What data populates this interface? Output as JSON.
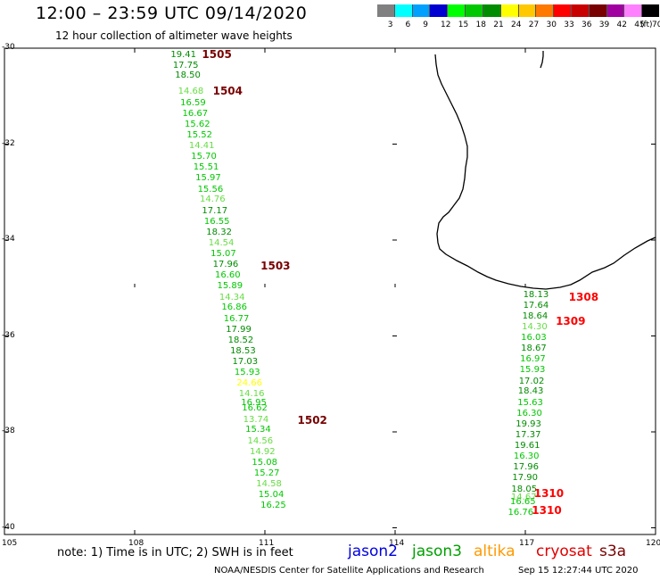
{
  "header": {
    "title": "12:00 – 23:59 UTC 09/14/2020",
    "subtitle": "12 hour collection of altimeter wave heights"
  },
  "legend": {
    "swatches": [
      "#808080",
      "#00ffff",
      "#00a0ff",
      "#0000d0",
      "#00ff00",
      "#00c800",
      "#008c00",
      "#ffff00",
      "#ffc800",
      "#ff7800",
      "#ff0000",
      "#c80000",
      "#780000",
      "#a000a0",
      "#ff80ff",
      "#000000"
    ],
    "labels": [
      "3",
      "6",
      "9",
      "12",
      "15",
      "18",
      "21",
      "24",
      "27",
      "30",
      "33",
      "36",
      "39",
      "42",
      "45",
      "70",
      "(ft)"
    ]
  },
  "axes": {
    "lat_labels": [
      "-30",
      "-32",
      "-34",
      "-36",
      "-38",
      "-40"
    ],
    "lon_labels": [
      "105",
      "108",
      "111",
      "114",
      "117",
      "120"
    ]
  },
  "passes": [
    {
      "label": "1505",
      "color": "#780000",
      "lon": 109.55,
      "lat": -30.15
    },
    {
      "label": "1504",
      "color": "#780000",
      "lon": 109.8,
      "lat": -30.92
    },
    {
      "label": "1503",
      "color": "#780000",
      "lon": 110.9,
      "lat": -34.55
    },
    {
      "label": "1502",
      "color": "#780000",
      "lon": 111.75,
      "lat": -37.78
    },
    {
      "label": "1308",
      "color": "#ff0000",
      "lon": 118.0,
      "lat": -35.2
    },
    {
      "label": "1309",
      "color": "#ff0000",
      "lon": 117.7,
      "lat": -35.72
    },
    {
      "label": "1310",
      "color": "#ff0000",
      "lon": 117.2,
      "lat": -39.3
    },
    {
      "label": "1310",
      "color": "#ff0000",
      "lon": 117.15,
      "lat": -39.65
    }
  ],
  "observations": [
    {
      "v": "19.41",
      "c": "#008c00",
      "lon": 108.83,
      "lat": -30.15
    },
    {
      "v": "17.75",
      "c": "#008c00",
      "lon": 108.88,
      "lat": -30.37
    },
    {
      "v": "18.50",
      "c": "#008c00",
      "lon": 108.93,
      "lat": -30.58
    },
    {
      "v": "14.68",
      "c": "#66dd44",
      "lon": 109.0,
      "lat": -30.92
    },
    {
      "v": "16.59",
      "c": "#00c800",
      "lon": 109.05,
      "lat": -31.15
    },
    {
      "v": "16.67",
      "c": "#00c800",
      "lon": 109.1,
      "lat": -31.37
    },
    {
      "v": "15.62",
      "c": "#00c800",
      "lon": 109.15,
      "lat": -31.6
    },
    {
      "v": "15.52",
      "c": "#00c800",
      "lon": 109.2,
      "lat": -31.82
    },
    {
      "v": "14.41",
      "c": "#66dd44",
      "lon": 109.25,
      "lat": -32.05
    },
    {
      "v": "15.70",
      "c": "#00c800",
      "lon": 109.3,
      "lat": -32.27
    },
    {
      "v": "15.51",
      "c": "#00c800",
      "lon": 109.35,
      "lat": -32.5
    },
    {
      "v": "15.97",
      "c": "#00c800",
      "lon": 109.4,
      "lat": -32.72
    },
    {
      "v": "15.56",
      "c": "#00c800",
      "lon": 109.45,
      "lat": -32.95
    },
    {
      "v": "14.76",
      "c": "#66dd44",
      "lon": 109.5,
      "lat": -33.17
    },
    {
      "v": "17.17",
      "c": "#008c00",
      "lon": 109.55,
      "lat": -33.4
    },
    {
      "v": "16.55",
      "c": "#00c800",
      "lon": 109.6,
      "lat": -33.62
    },
    {
      "v": "18.32",
      "c": "#008c00",
      "lon": 109.65,
      "lat": -33.85
    },
    {
      "v": "14.54",
      "c": "#66dd44",
      "lon": 109.7,
      "lat": -34.07
    },
    {
      "v": "15.07",
      "c": "#00c800",
      "lon": 109.75,
      "lat": -34.3
    },
    {
      "v": "17.96",
      "c": "#008c00",
      "lon": 109.8,
      "lat": -34.52
    },
    {
      "v": "16.60",
      "c": "#00c800",
      "lon": 109.85,
      "lat": -34.75
    },
    {
      "v": "15.89",
      "c": "#00c800",
      "lon": 109.9,
      "lat": -34.97
    },
    {
      "v": "14.34",
      "c": "#66dd44",
      "lon": 109.95,
      "lat": -35.2
    },
    {
      "v": "16.86",
      "c": "#00c800",
      "lon": 110.0,
      "lat": -35.42
    },
    {
      "v": "16.77",
      "c": "#00c800",
      "lon": 110.05,
      "lat": -35.65
    },
    {
      "v": "17.99",
      "c": "#008c00",
      "lon": 110.1,
      "lat": -35.87
    },
    {
      "v": "18.52",
      "c": "#008c00",
      "lon": 110.15,
      "lat": -36.1
    },
    {
      "v": "18.53",
      "c": "#008c00",
      "lon": 110.2,
      "lat": -36.32
    },
    {
      "v": "17.03",
      "c": "#008c00",
      "lon": 110.25,
      "lat": -36.55
    },
    {
      "v": "15.93",
      "c": "#00c800",
      "lon": 110.3,
      "lat": -36.77
    },
    {
      "v": "24.66",
      "c": "#ffff00",
      "lon": 110.35,
      "lat": -37.0
    },
    {
      "v": "14.16",
      "c": "#66dd44",
      "lon": 110.4,
      "lat": -37.22
    },
    {
      "v": "16.95",
      "c": "#00c800",
      "lon": 110.45,
      "lat": -37.4
    },
    {
      "v": "16.62",
      "c": "#00c800",
      "lon": 110.47,
      "lat": -37.52
    },
    {
      "v": "13.74",
      "c": "#66dd44",
      "lon": 110.5,
      "lat": -37.75
    },
    {
      "v": "15.34",
      "c": "#00c800",
      "lon": 110.55,
      "lat": -37.97
    },
    {
      "v": "14.56",
      "c": "#66dd44",
      "lon": 110.6,
      "lat": -38.2
    },
    {
      "v": "14.92",
      "c": "#66dd44",
      "lon": 110.65,
      "lat": -38.42
    },
    {
      "v": "15.08",
      "c": "#00c800",
      "lon": 110.7,
      "lat": -38.65
    },
    {
      "v": "15.27",
      "c": "#00c800",
      "lon": 110.75,
      "lat": -38.87
    },
    {
      "v": "14.58",
      "c": "#66dd44",
      "lon": 110.8,
      "lat": -39.1
    },
    {
      "v": "15.04",
      "c": "#00c800",
      "lon": 110.85,
      "lat": -39.32
    },
    {
      "v": "16.25",
      "c": "#00c800",
      "lon": 110.9,
      "lat": -39.55
    },
    {
      "v": "18.13",
      "c": "#008c00",
      "lon": 116.95,
      "lat": -35.15
    },
    {
      "v": "17.64",
      "c": "#008c00",
      "lon": 116.95,
      "lat": -35.37
    },
    {
      "v": "18.64",
      "c": "#008c00",
      "lon": 116.93,
      "lat": -35.6
    },
    {
      "v": "14.30",
      "c": "#66dd44",
      "lon": 116.92,
      "lat": -35.82
    },
    {
      "v": "16.03",
      "c": "#00c800",
      "lon": 116.9,
      "lat": -36.05
    },
    {
      "v": "18.67",
      "c": "#008c00",
      "lon": 116.9,
      "lat": -36.27
    },
    {
      "v": "16.97",
      "c": "#00c800",
      "lon": 116.88,
      "lat": -36.5
    },
    {
      "v": "15.93",
      "c": "#00c800",
      "lon": 116.87,
      "lat": -36.72
    },
    {
      "v": "17.02",
      "c": "#008c00",
      "lon": 116.85,
      "lat": -36.95
    },
    {
      "v": "18.43",
      "c": "#008c00",
      "lon": 116.83,
      "lat": -37.17
    },
    {
      "v": "15.63",
      "c": "#00c800",
      "lon": 116.82,
      "lat": -37.4
    },
    {
      "v": "16.30",
      "c": "#00c800",
      "lon": 116.8,
      "lat": -37.62
    },
    {
      "v": "19.93",
      "c": "#008c00",
      "lon": 116.78,
      "lat": -37.85
    },
    {
      "v": "17.37",
      "c": "#008c00",
      "lon": 116.77,
      "lat": -38.07
    },
    {
      "v": "19.61",
      "c": "#008c00",
      "lon": 116.75,
      "lat": -38.3
    },
    {
      "v": "16.30",
      "c": "#00c800",
      "lon": 116.73,
      "lat": -38.52
    },
    {
      "v": "17.96",
      "c": "#008c00",
      "lon": 116.72,
      "lat": -38.75
    },
    {
      "v": "17.90",
      "c": "#008c00",
      "lon": 116.7,
      "lat": -38.97
    },
    {
      "v": "18.05",
      "c": "#008c00",
      "lon": 116.68,
      "lat": -39.2
    },
    {
      "v": "14.67",
      "c": "#66dd44",
      "lon": 116.67,
      "lat": -39.37
    },
    {
      "v": "16.65",
      "c": "#00c800",
      "lon": 116.65,
      "lat": -39.47
    },
    {
      "v": "16.76",
      "c": "#00c800",
      "lon": 116.6,
      "lat": -39.7
    }
  ],
  "footer": {
    "note": "note: 1) Time is in UTC; 2) SWH is in feet",
    "satellites": [
      {
        "name": "jason2",
        "color": "#0000e0"
      },
      {
        "name": "jason3",
        "color": "#00a000"
      },
      {
        "name": "altika",
        "color": "#ff9900"
      },
      {
        "name": "cryosat",
        "color": "#e00000"
      },
      {
        "name": "s3a",
        "color": "#780000"
      }
    ],
    "credit": "NOAA/NESDIS Center for Satellite Applications and Research",
    "timestamp": "Sep 15 12:27:44 UTC 2020"
  }
}
